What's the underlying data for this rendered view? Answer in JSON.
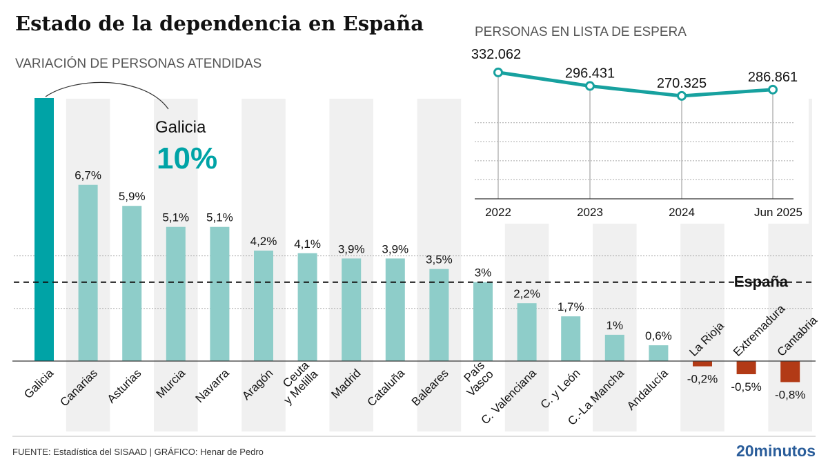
{
  "title": "Estado de la dependencia en España",
  "footer": {
    "source": "FUENTE: Estadística del SISAAD  |  GRÁFICO: Henar de Pedro",
    "logo": "20minutos"
  },
  "colors": {
    "highlight": "#00a3a6",
    "positive": "#8ecdc9",
    "negative": "#b23a16",
    "line": "#17a19f",
    "logo": "#2a5d9a"
  },
  "chart_data": [
    {
      "type": "bar",
      "title": "VARIACIÓN DE PERSONAS ATENDIDAS",
      "categories": [
        "Galicia",
        "Canarias",
        "Asturias",
        "Murcia",
        "Navarra",
        "Aragón",
        "Ceuta\ny Melilla",
        "Madrid",
        "Cataluña",
        "Baleares",
        "País\nVasco",
        "C. Valenciana",
        "C. y León",
        "C.-La Mancha",
        "Andalucía",
        "La Rioja",
        "Extremadura",
        "Cantabria"
      ],
      "values": [
        10,
        6.7,
        5.9,
        5.1,
        5.1,
        4.2,
        4.1,
        3.9,
        3.9,
        3.5,
        3,
        2.2,
        1.7,
        1,
        0.6,
        -0.2,
        -0.5,
        -0.8
      ],
      "data_labels": [
        "10%",
        "6,7%",
        "5,9%",
        "5,1%",
        "5,1%",
        "4,2%",
        "4,1%",
        "3,9%",
        "3,9%",
        "3,5%",
        "3%",
        "2,2%",
        "1,7%",
        "1%",
        "0,6%",
        "-0,2%",
        "-0,5%",
        "-0,8%"
      ],
      "annotation": {
        "label": "Galicia",
        "value": "10%"
      },
      "reference_line": {
        "label": "España",
        "value": 3.0
      },
      "gridlines": [
        2,
        4
      ],
      "ylim": [
        -1,
        10
      ]
    },
    {
      "type": "line",
      "title": "PERSONAS EN LISTA DE ESPERA",
      "categories": [
        "2022",
        "2023",
        "2024",
        "Jun 2025"
      ],
      "values": [
        332062,
        296431,
        270325,
        286861
      ],
      "data_labels": [
        "332.062",
        "296.431",
        "270.325",
        "286.861"
      ],
      "ylim": [
        0,
        350000
      ],
      "gridlines": [
        50000,
        100000,
        150000,
        200000
      ]
    }
  ]
}
